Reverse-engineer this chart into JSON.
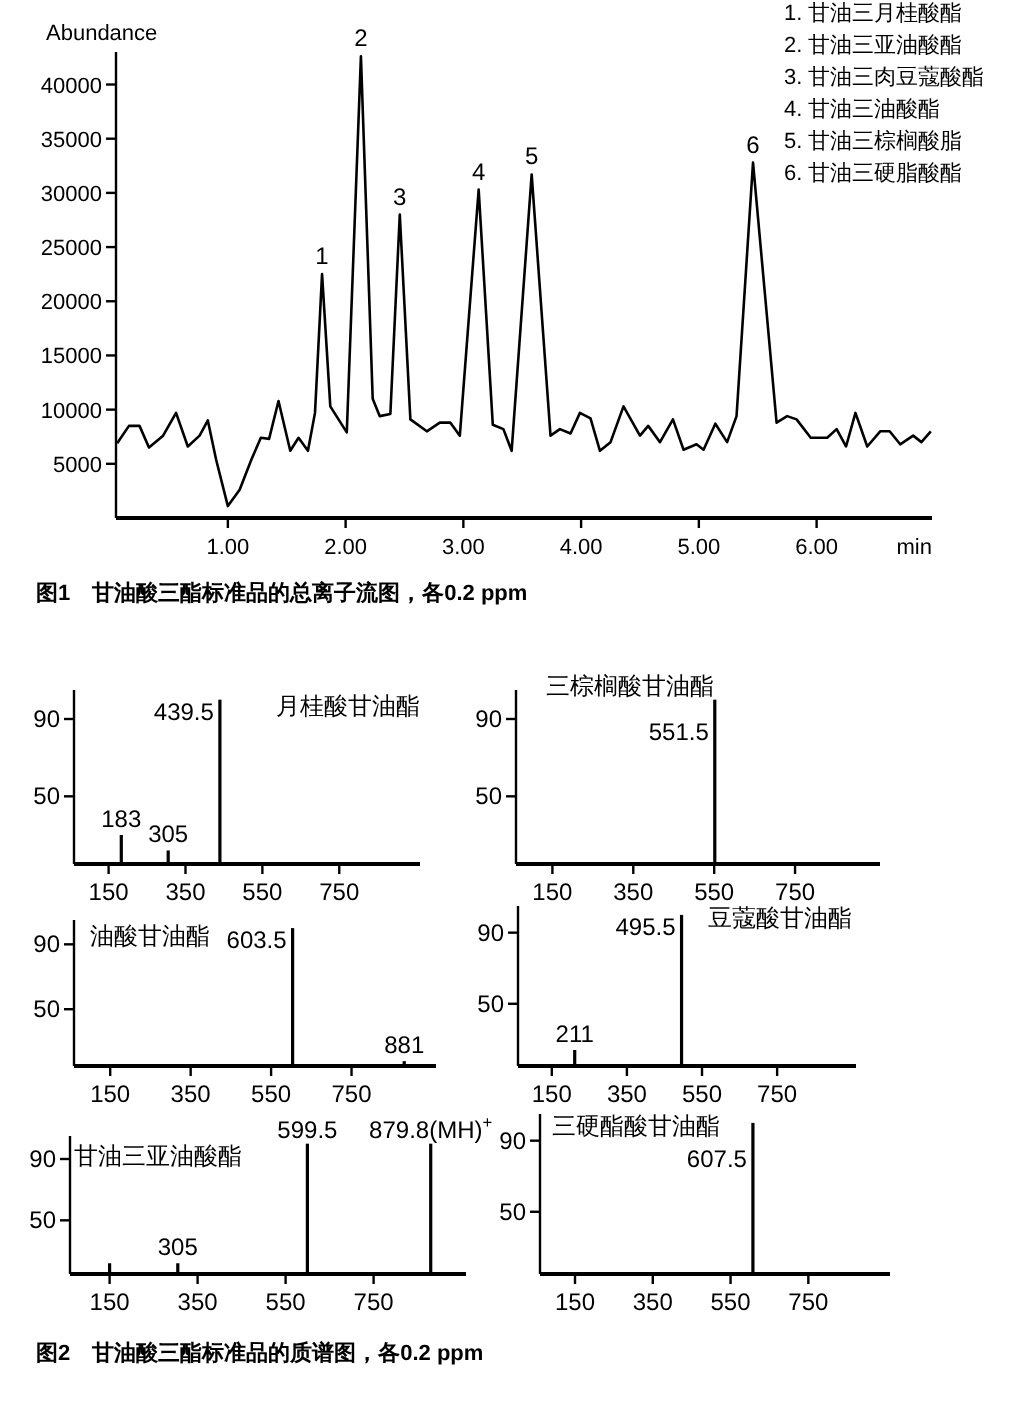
{
  "chart_data": [
    {
      "type": "line",
      "ylabel": "Abundance",
      "xlabel": "min",
      "color": "#000000",
      "xlim": [
        0.05,
        6.98
      ],
      "ylim": [
        0,
        43000
      ],
      "xticks": [
        {
          "value": 1,
          "label": "1.00"
        },
        {
          "value": 2,
          "label": "2.00"
        },
        {
          "value": 3,
          "label": "3.00"
        },
        {
          "value": 4,
          "label": "4.00"
        },
        {
          "value": 5,
          "label": "5.00"
        },
        {
          "value": 6,
          "label": "6.00"
        }
      ],
      "yticks": [
        5000,
        10000,
        15000,
        20000,
        25000,
        30000,
        35000,
        40000
      ],
      "x": [
        0.06,
        0.16,
        0.25,
        0.33,
        0.45,
        0.56,
        0.66,
        0.76,
        0.83,
        0.9,
        1.0,
        1.1,
        1.2,
        1.28,
        1.35,
        1.43,
        1.53,
        1.6,
        1.68,
        1.74,
        1.8,
        1.87,
        2.01,
        2.13,
        2.23,
        2.29,
        2.38,
        2.46,
        2.55,
        2.69,
        2.8,
        2.89,
        2.97,
        3.13,
        3.25,
        3.34,
        3.41,
        3.58,
        3.74,
        3.82,
        3.91,
        3.99,
        4.08,
        4.16,
        4.25,
        4.36,
        4.5,
        4.57,
        4.67,
        4.78,
        4.87,
        4.98,
        5.04,
        5.14,
        5.24,
        5.32,
        5.46,
        5.66,
        5.75,
        5.83,
        5.95,
        6.09,
        6.17,
        6.25,
        6.33,
        6.43,
        6.54,
        6.62,
        6.71,
        6.82,
        6.89,
        6.97
      ],
      "values": [
        6900,
        8500,
        8500,
        6500,
        7600,
        9700,
        6600,
        7600,
        9000,
        5400,
        1100,
        2600,
        5400,
        7400,
        7300,
        10800,
        6200,
        7400,
        6200,
        9700,
        22500,
        10300,
        7900,
        42600,
        11000,
        9400,
        9600,
        28000,
        9100,
        8000,
        8800,
        8800,
        7600,
        30300,
        8600,
        8200,
        6200,
        31700,
        7600,
        8200,
        7800,
        9700,
        9200,
        6200,
        7000,
        10300,
        7600,
        8500,
        7000,
        9100,
        6300,
        6800,
        6300,
        8700,
        7000,
        9400,
        32800,
        8800,
        9400,
        9100,
        7400,
        7400,
        8200,
        6600,
        9700,
        6600,
        8000,
        8000,
        6800,
        7600,
        7000,
        8000
      ],
      "annotations": [
        {
          "text": "1",
          "x": 1.8,
          "y": 22500
        },
        {
          "text": "2",
          "x": 2.13,
          "y": 42600
        },
        {
          "text": "3",
          "x": 2.46,
          "y": 28000
        },
        {
          "text": "4",
          "x": 3.13,
          "y": 30300
        },
        {
          "text": "5",
          "x": 3.58,
          "y": 31700
        },
        {
          "text": "6",
          "x": 5.46,
          "y": 32800
        },
        "1. 甘油三月桂酸酯",
        "2. 甘油三亚油酸酯",
        "3. 甘油三肉豆蔻酸酯",
        "4. 甘油三油酸酯",
        "5. 甘油三棕榈酸脂",
        "6. 甘油三硬脂酸酯",
        "图1　甘油酸三酯标准品的总离子流图，各0.2 ppm"
      ]
    },
    {
      "type": "bar",
      "title": "月桂酸甘油酯",
      "x": [
        183,
        305,
        439.5
      ],
      "values": [
        30,
        22,
        100
      ],
      "color": "#000000",
      "xlim": [
        60,
        960
      ],
      "ylim": [
        15,
        105
      ],
      "xticks": [
        150,
        350,
        550,
        750
      ],
      "yticks": [
        50,
        90
      ],
      "annotations": [
        {
          "text": "183",
          "x": 183,
          "y": 30
        },
        {
          "text": "305",
          "x": 305,
          "y": 22
        },
        {
          "text": "439.5",
          "x": 439.5,
          "y": 100
        }
      ]
    },
    {
      "type": "bar",
      "title": "三棕榈酸甘油酯",
      "x": [
        551.5
      ],
      "values": [
        100
      ],
      "color": "#000000",
      "xlim": [
        60,
        960
      ],
      "ylim": [
        15,
        105
      ],
      "xticks": [
        150,
        350,
        550,
        750
      ],
      "yticks": [
        50,
        90
      ],
      "annotations": [
        {
          "text": "551.5",
          "x": 551.5,
          "y": 100
        }
      ]
    },
    {
      "type": "bar",
      "title": "油酸甘油酯",
      "x": [
        603.5,
        881
      ],
      "values": [
        100,
        18
      ],
      "color": "#000000",
      "xlim": [
        60,
        960
      ],
      "ylim": [
        15,
        105
      ],
      "xticks": [
        150,
        350,
        550,
        750
      ],
      "yticks": [
        50,
        90
      ],
      "annotations": [
        {
          "text": "603.5",
          "x": 603.5,
          "y": 100
        },
        {
          "text": "881",
          "x": 881,
          "y": 18
        }
      ]
    },
    {
      "type": "bar",
      "title": "豆蔻酸甘油酯",
      "x": [
        211,
        495.5
      ],
      "values": [
        24,
        100
      ],
      "color": "#000000",
      "xlim": [
        60,
        960
      ],
      "ylim": [
        15,
        105
      ],
      "xticks": [
        150,
        350,
        550,
        750
      ],
      "yticks": [
        50,
        90
      ],
      "annotations": [
        {
          "text": "211",
          "x": 211,
          "y": 24
        },
        {
          "text": "495.5",
          "x": 495.5,
          "y": 100
        }
      ]
    },
    {
      "type": "bar",
      "title": "甘油三亚油酸酯",
      "x": [
        150,
        305,
        599.5,
        879.8
      ],
      "values": [
        22,
        22,
        100,
        100
      ],
      "color": "#000000",
      "xlim": [
        60,
        960
      ],
      "ylim": [
        15,
        105
      ],
      "xticks": [
        150,
        350,
        550,
        750
      ],
      "yticks": [
        50,
        90
      ],
      "annotations": [
        {
          "text": "305",
          "x": 305,
          "y": 22
        },
        {
          "text": "599.5",
          "x": 599.5,
          "y": 100
        },
        {
          "text": "879.8(MH)$^{+}$",
          "x": 879.8,
          "y": 100
        }
      ]
    },
    {
      "type": "bar",
      "title": "三硬酯酸甘油酯",
      "x": [
        607.5
      ],
      "values": [
        100
      ],
      "color": "#000000",
      "xlim": [
        60,
        960
      ],
      "ylim": [
        15,
        105
      ],
      "xticks": [
        150,
        350,
        550,
        750
      ],
      "yticks": [
        50,
        90
      ],
      "annotations": [
        {
          "text": "607.5",
          "x": 607.5,
          "y": 100
        },
        "图2　甘油酸三酯标准品的质谱图，各0.2 ppm"
      ]
    }
  ]
}
